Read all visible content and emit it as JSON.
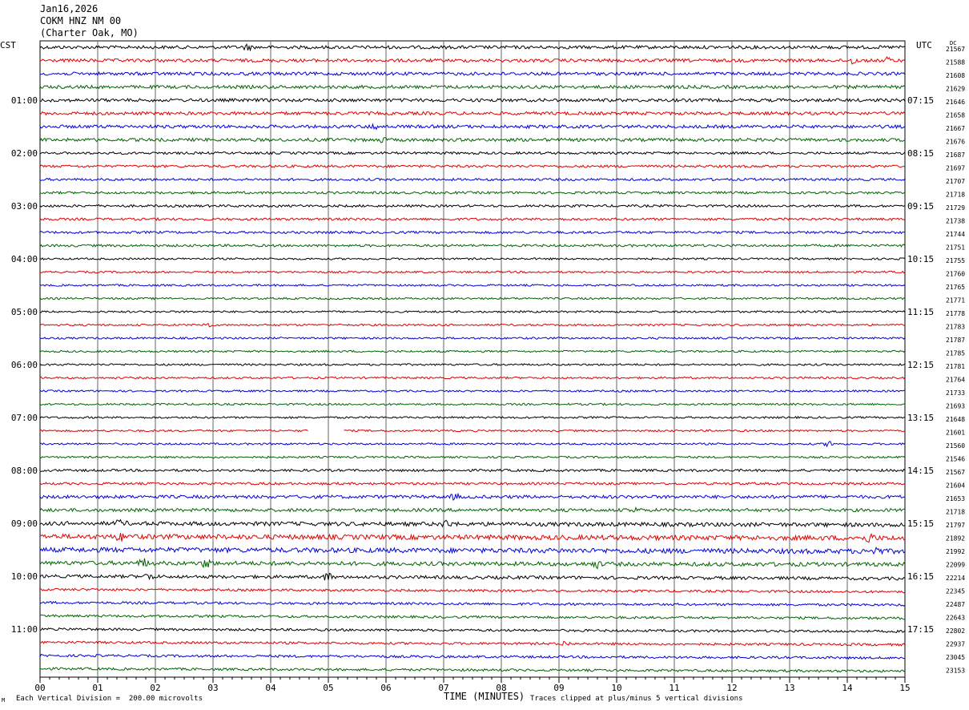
{
  "header": {
    "date": "Jan16,2026",
    "station": "COKM HNZ NM 00",
    "location": "(Charter Oak, MO)"
  },
  "footer": {
    "scale_note": "Each Vertical Division =  200.00 microvolts",
    "clip_note": "Traces clipped at plus/minus 5 vertical divisions",
    "corner_mark": "M"
  },
  "chart_data": {
    "type": "line",
    "title": "Jan16,2026",
    "xlabel": "TIME (MINUTES)",
    "ylabel": "",
    "left_tz": "CST",
    "right_tz": "UTC",
    "dc_label": "DC",
    "xlim": [
      0,
      15
    ],
    "x_ticks": [
      "00",
      "01",
      "02",
      "03",
      "04",
      "05",
      "06",
      "07",
      "08",
      "09",
      "10",
      "11",
      "12",
      "13",
      "14",
      "15"
    ],
    "trace_minutes": 15,
    "trace_colors": [
      "#000000",
      "#e00000",
      "#0000e0",
      "#006400"
    ],
    "left_hour_labels": [
      "01:00",
      "02:00",
      "03:00",
      "04:00",
      "05:00",
      "06:00",
      "07:00",
      "08:00",
      "09:00",
      "10:00",
      "11:00"
    ],
    "right_hour_labels": [
      "07:15",
      "08:15",
      "09:15",
      "10:15",
      "11:15",
      "12:15",
      "13:15",
      "14:15",
      "15:15",
      "16:15",
      "17:15"
    ],
    "hour_label_first_trace": 4,
    "hour_label_every": 4,
    "dc_offsets": [
      21567,
      21588,
      21608,
      21629,
      21646,
      21658,
      21667,
      21676,
      21687,
      21697,
      21707,
      21718,
      21729,
      21738,
      21744,
      21751,
      21755,
      21760,
      21765,
      21771,
      21778,
      21783,
      21787,
      21785,
      21781,
      21764,
      21733,
      21693,
      21648,
      21601,
      21560,
      21546,
      21567,
      21604,
      21653,
      21718,
      21797,
      21892,
      21992,
      22099,
      22214,
      22345,
      22487,
      22643,
      22802,
      22937,
      23045,
      23153
    ],
    "trace_amplitude": [
      2,
      2,
      2,
      2,
      2,
      2,
      2,
      2,
      1.5,
      1.5,
      1.5,
      1.5,
      1.5,
      1.5,
      1.5,
      1.5,
      1.2,
      1.2,
      1.2,
      1.2,
      1.2,
      1.2,
      1.2,
      1.2,
      1.2,
      1.2,
      1.2,
      1.2,
      1.2,
      1.2,
      1.2,
      1.2,
      1.5,
      1.5,
      2,
      2,
      2.5,
      3,
      3,
      2.5,
      2,
      1.5,
      1.5,
      1.5,
      1.5,
      1.5,
      1.5,
      1.5
    ],
    "gaps": [
      {
        "trace": 29,
        "from_minute": 4.65,
        "to_minute": 5.25
      }
    ],
    "events": [
      {
        "trace": 0,
        "minute": 3.6,
        "amp": 3
      },
      {
        "trace": 1,
        "minute": 14.1,
        "amp": 4
      },
      {
        "trace": 1,
        "minute": 14.7,
        "amp": 3
      },
      {
        "trace": 6,
        "minute": 5.8,
        "amp": 3
      },
      {
        "trace": 7,
        "minute": 5.9,
        "amp": 3
      },
      {
        "trace": 21,
        "minute": 2.9,
        "amp": 3
      },
      {
        "trace": 30,
        "minute": 13.7,
        "amp": 4
      },
      {
        "trace": 34,
        "minute": 7.2,
        "amp": 3
      },
      {
        "trace": 35,
        "minute": 10.3,
        "amp": 3
      },
      {
        "trace": 36,
        "minute": 1.4,
        "amp": 4
      },
      {
        "trace": 36,
        "minute": 7.05,
        "amp": 4
      },
      {
        "trace": 37,
        "minute": 1.4,
        "amp": 4
      },
      {
        "trace": 37,
        "minute": 14.4,
        "amp": 5
      },
      {
        "trace": 38,
        "minute": 14.5,
        "amp": 4
      },
      {
        "trace": 39,
        "minute": 1.8,
        "amp": 5
      },
      {
        "trace": 39,
        "minute": 2.9,
        "amp": 6
      },
      {
        "trace": 39,
        "minute": 9.65,
        "amp": 4
      },
      {
        "trace": 40,
        "minute": 1.9,
        "amp": 4
      },
      {
        "trace": 40,
        "minute": 5.0,
        "amp": 5
      },
      {
        "trace": 45,
        "minute": 9.1,
        "amp": 3
      }
    ]
  }
}
